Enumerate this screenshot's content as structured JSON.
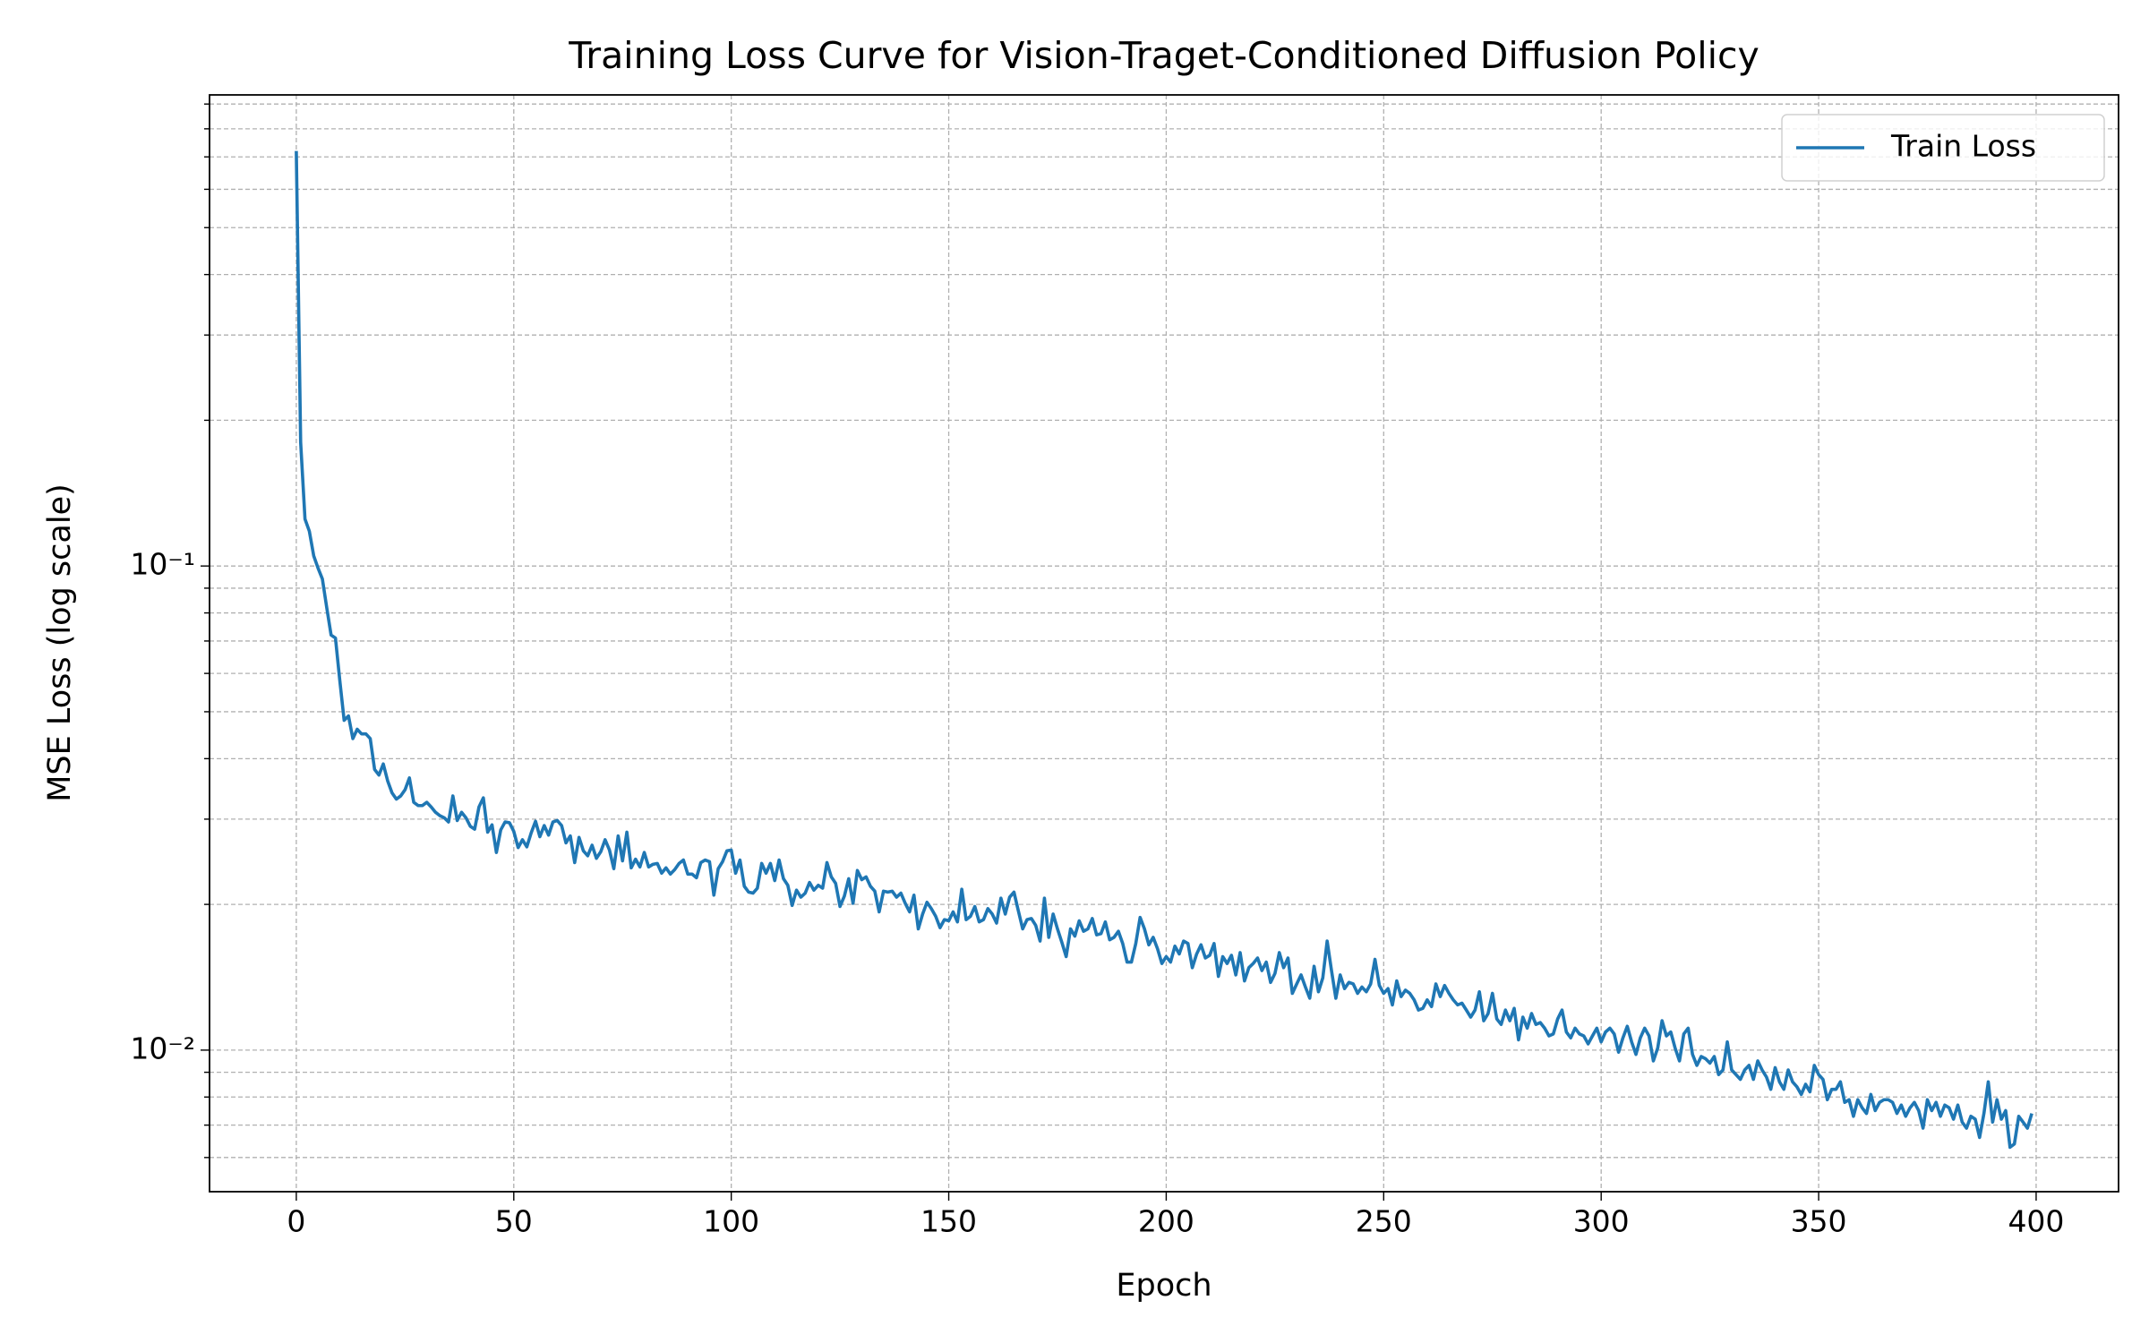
{
  "chart_data": {
    "type": "line",
    "title": "Training Loss Curve for Vision-Traget-Conditioned Diffusion Policy",
    "xlabel": "Epoch",
    "ylabel": "MSE Loss (log scale)",
    "yscale": "log",
    "grid": true,
    "legend": "upper right",
    "xlim": [
      -19.95,
      418.95
    ],
    "ylim": [
      0.0051,
      0.94
    ],
    "xticks": [
      0,
      50,
      100,
      150,
      200,
      250,
      300,
      350,
      400
    ],
    "yticks": [
      {
        "value": 0.01,
        "label": "10⁻²"
      },
      {
        "value": 0.1,
        "label": "10⁻¹"
      }
    ],
    "yticks_minor": [
      0.006,
      0.007,
      0.008,
      0.009,
      0.02,
      0.03,
      0.04,
      0.05,
      0.06,
      0.07,
      0.08,
      0.09,
      0.2,
      0.3,
      0.4,
      0.5,
      0.6,
      0.7,
      0.8,
      0.9
    ],
    "x": [
      0,
      1,
      2,
      3,
      4,
      5,
      6,
      7,
      8,
      9,
      10,
      11,
      12,
      13,
      14,
      15,
      16,
      17,
      18,
      19,
      20,
      21,
      22,
      23,
      24,
      25,
      26,
      27,
      28,
      29,
      30,
      31,
      32,
      33,
      34,
      35,
      36,
      37,
      38,
      39,
      40,
      41,
      42,
      43,
      44,
      45,
      46,
      47,
      48,
      49,
      50,
      51,
      52,
      53,
      54,
      55,
      56,
      57,
      58,
      59,
      60,
      61,
      62,
      63,
      64,
      65,
      66,
      67,
      68,
      69,
      70,
      71,
      72,
      73,
      74,
      75,
      76,
      77,
      78,
      79,
      80,
      81,
      82,
      83,
      84,
      85,
      86,
      87,
      88,
      89,
      90,
      91,
      92,
      93,
      94,
      95,
      96,
      97,
      98,
      99,
      100,
      101,
      102,
      103,
      104,
      105,
      106,
      107,
      108,
      109,
      110,
      111,
      112,
      113,
      114,
      115,
      116,
      117,
      118,
      119,
      120,
      121,
      122,
      123,
      124,
      125,
      126,
      127,
      128,
      129,
      130,
      131,
      132,
      133,
      134,
      135,
      136,
      137,
      138,
      139,
      140,
      141,
      142,
      143,
      144,
      145,
      146,
      147,
      148,
      149,
      150,
      151,
      152,
      153,
      154,
      155,
      156,
      157,
      158,
      159,
      160,
      161,
      162,
      163,
      164,
      165,
      166,
      167,
      168,
      169,
      170,
      171,
      172,
      173,
      174,
      175,
      176,
      177,
      178,
      179,
      180,
      181,
      182,
      183,
      184,
      185,
      186,
      187,
      188,
      189,
      190,
      191,
      192,
      193,
      194,
      195,
      196,
      197,
      198,
      199,
      200,
      201,
      202,
      203,
      204,
      205,
      206,
      207,
      208,
      209,
      210,
      211,
      212,
      213,
      214,
      215,
      216,
      217,
      218,
      219,
      220,
      221,
      222,
      223,
      224,
      225,
      226,
      227,
      228,
      229,
      230,
      231,
      232,
      233,
      234,
      235,
      236,
      237,
      238,
      239,
      240,
      241,
      242,
      243,
      244,
      245,
      246,
      247,
      248,
      249,
      250,
      251,
      252,
      253,
      254,
      255,
      256,
      257,
      258,
      259,
      260,
      261,
      262,
      263,
      264,
      265,
      266,
      267,
      268,
      269,
      270,
      271,
      272,
      273,
      274,
      275,
      276,
      277,
      278,
      279,
      280,
      281,
      282,
      283,
      284,
      285,
      286,
      287,
      288,
      289,
      290,
      291,
      292,
      293,
      294,
      295,
      296,
      297,
      298,
      299,
      300,
      301,
      302,
      303,
      304,
      305,
      306,
      307,
      308,
      309,
      310,
      311,
      312,
      313,
      314,
      315,
      316,
      317,
      318,
      319,
      320,
      321,
      322,
      323,
      324,
      325,
      326,
      327,
      328,
      329,
      330,
      331,
      332,
      333,
      334,
      335,
      336,
      337,
      338,
      339,
      340,
      341,
      342,
      343,
      344,
      345,
      346,
      347,
      348,
      349,
      350,
      351,
      352,
      353,
      354,
      355,
      356,
      357,
      358,
      359,
      360,
      361,
      362,
      363,
      364,
      365,
      366,
      367,
      368,
      369,
      370,
      371,
      372,
      373,
      374,
      375,
      376,
      377,
      378,
      379,
      380,
      381,
      382,
      383,
      384,
      385,
      386,
      387,
      388,
      389,
      390,
      391,
      392,
      393,
      394,
      395,
      396,
      397,
      398,
      399
    ],
    "series": [
      {
        "name": "Train Loss",
        "color": "#1f77b4",
        "values": [
          0.72,
          0.18,
          0.125,
          0.118,
          0.105,
          0.099,
          0.094,
          0.082,
          0.072,
          0.071,
          0.058,
          0.048,
          0.049,
          0.044,
          0.046,
          0.045,
          0.045,
          0.044,
          0.038,
          0.037,
          0.039,
          0.036,
          0.034,
          0.033,
          0.0335,
          0.0345,
          0.0365,
          0.0325,
          0.032,
          0.032,
          0.0325,
          0.0318,
          0.031,
          0.0305,
          0.0302,
          0.0296,
          0.0335,
          0.0298,
          0.031,
          0.0302,
          0.029,
          0.0286,
          0.0318,
          0.0332,
          0.0282,
          0.0292,
          0.0256,
          0.0285,
          0.0296,
          0.0295,
          0.0283,
          0.0262,
          0.0272,
          0.0263,
          0.0281,
          0.0297,
          0.0276,
          0.0291,
          0.0278,
          0.0296,
          0.0298,
          0.0291,
          0.0268,
          0.0277,
          0.0244,
          0.0275,
          0.0258,
          0.0252,
          0.0265,
          0.0249,
          0.0257,
          0.0272,
          0.0259,
          0.0237,
          0.0277,
          0.0246,
          0.0282,
          0.0238,
          0.0248,
          0.0239,
          0.0256,
          0.0239,
          0.0242,
          0.0243,
          0.0232,
          0.0238,
          0.0231,
          0.0236,
          0.0243,
          0.0247,
          0.0231,
          0.0231,
          0.0227,
          0.0244,
          0.0247,
          0.0245,
          0.0209,
          0.0237,
          0.0245,
          0.0258,
          0.0259,
          0.0232,
          0.0247,
          0.0218,
          0.0212,
          0.0211,
          0.0216,
          0.0243,
          0.0232,
          0.0243,
          0.0224,
          0.0247,
          0.0226,
          0.0219,
          0.0199,
          0.0214,
          0.0207,
          0.0211,
          0.0222,
          0.0214,
          0.0219,
          0.0216,
          0.0244,
          0.0228,
          0.0221,
          0.0198,
          0.0208,
          0.0226,
          0.0201,
          0.0235,
          0.0225,
          0.0228,
          0.0218,
          0.0213,
          0.0193,
          0.0213,
          0.0212,
          0.0213,
          0.0207,
          0.0211,
          0.0201,
          0.0193,
          0.0209,
          0.0178,
          0.0191,
          0.0202,
          0.0196,
          0.0189,
          0.0179,
          0.0186,
          0.0185,
          0.0193,
          0.0184,
          0.0215,
          0.0186,
          0.0189,
          0.0198,
          0.0184,
          0.0186,
          0.0196,
          0.0191,
          0.0183,
          0.0206,
          0.0191,
          0.0207,
          0.0212,
          0.0194,
          0.0178,
          0.0186,
          0.0187,
          0.0181,
          0.0168,
          0.0206,
          0.0171,
          0.0191,
          0.0178,
          0.0167,
          0.0156,
          0.0178,
          0.0172,
          0.0185,
          0.0176,
          0.0178,
          0.0187,
          0.0173,
          0.0174,
          0.0184,
          0.0169,
          0.0171,
          0.0176,
          0.0166,
          0.0152,
          0.0152,
          0.0166,
          0.0188,
          0.0178,
          0.0165,
          0.0171,
          0.0162,
          0.0151,
          0.0156,
          0.0152,
          0.0164,
          0.0158,
          0.0168,
          0.0166,
          0.0148,
          0.0158,
          0.0165,
          0.0155,
          0.0157,
          0.0166,
          0.0142,
          0.0156,
          0.0151,
          0.0157,
          0.0143,
          0.0159,
          0.0139,
          0.0148,
          0.0151,
          0.0155,
          0.0146,
          0.0152,
          0.0138,
          0.0144,
          0.0159,
          0.0148,
          0.0155,
          0.0131,
          0.0137,
          0.0143,
          0.0135,
          0.0128,
          0.0149,
          0.0132,
          0.0141,
          0.0168,
          0.0146,
          0.0128,
          0.0143,
          0.0134,
          0.0138,
          0.0137,
          0.0131,
          0.0135,
          0.0132,
          0.0137,
          0.0154,
          0.0136,
          0.0131,
          0.0134,
          0.0124,
          0.0139,
          0.0129,
          0.0133,
          0.0131,
          0.0127,
          0.0121,
          0.0122,
          0.0127,
          0.0123,
          0.0137,
          0.0129,
          0.0136,
          0.0131,
          0.0127,
          0.0124,
          0.0125,
          0.0121,
          0.0117,
          0.0121,
          0.0132,
          0.0115,
          0.0119,
          0.0131,
          0.0116,
          0.0113,
          0.0121,
          0.0115,
          0.0122,
          0.0105,
          0.0117,
          0.0111,
          0.0119,
          0.0113,
          0.0114,
          0.0111,
          0.0107,
          0.0108,
          0.0116,
          0.0121,
          0.0109,
          0.0106,
          0.0111,
          0.0108,
          0.0107,
          0.0103,
          0.0107,
          0.0111,
          0.0104,
          0.0109,
          0.0111,
          0.0108,
          0.0099,
          0.0106,
          0.0112,
          0.0104,
          0.0098,
          0.0106,
          0.0111,
          0.0107,
          0.0095,
          0.0101,
          0.0115,
          0.0107,
          0.0109,
          0.0101,
          0.0095,
          0.0108,
          0.0111,
          0.0098,
          0.0093,
          0.0097,
          0.0096,
          0.0094,
          0.0097,
          0.0089,
          0.0091,
          0.0104,
          0.0091,
          0.0089,
          0.0087,
          0.0091,
          0.0093,
          0.0087,
          0.0095,
          0.0091,
          0.0088,
          0.0083,
          0.0092,
          0.0086,
          0.0083,
          0.0091,
          0.0086,
          0.0084,
          0.0081,
          0.0085,
          0.0082,
          0.0093,
          0.0089,
          0.0087,
          0.0079,
          0.0083,
          0.0083,
          0.0086,
          0.0078,
          0.0079,
          0.0073,
          0.0079,
          0.0076,
          0.0074,
          0.0081,
          0.0075,
          0.0078,
          0.0079,
          0.0079,
          0.0078,
          0.0074,
          0.0077,
          0.0073,
          0.0076,
          0.0078,
          0.0075,
          0.0069,
          0.0079,
          0.0075,
          0.0078,
          0.0073,
          0.0077,
          0.0076,
          0.0072,
          0.0077,
          0.0071,
          0.0069,
          0.0073,
          0.0072,
          0.0066,
          0.0074,
          0.0086,
          0.0071,
          0.0079,
          0.0072,
          0.0075,
          0.0063,
          0.0064,
          0.0073,
          0.0071,
          0.0069,
          0.0074
        ]
      }
    ]
  }
}
